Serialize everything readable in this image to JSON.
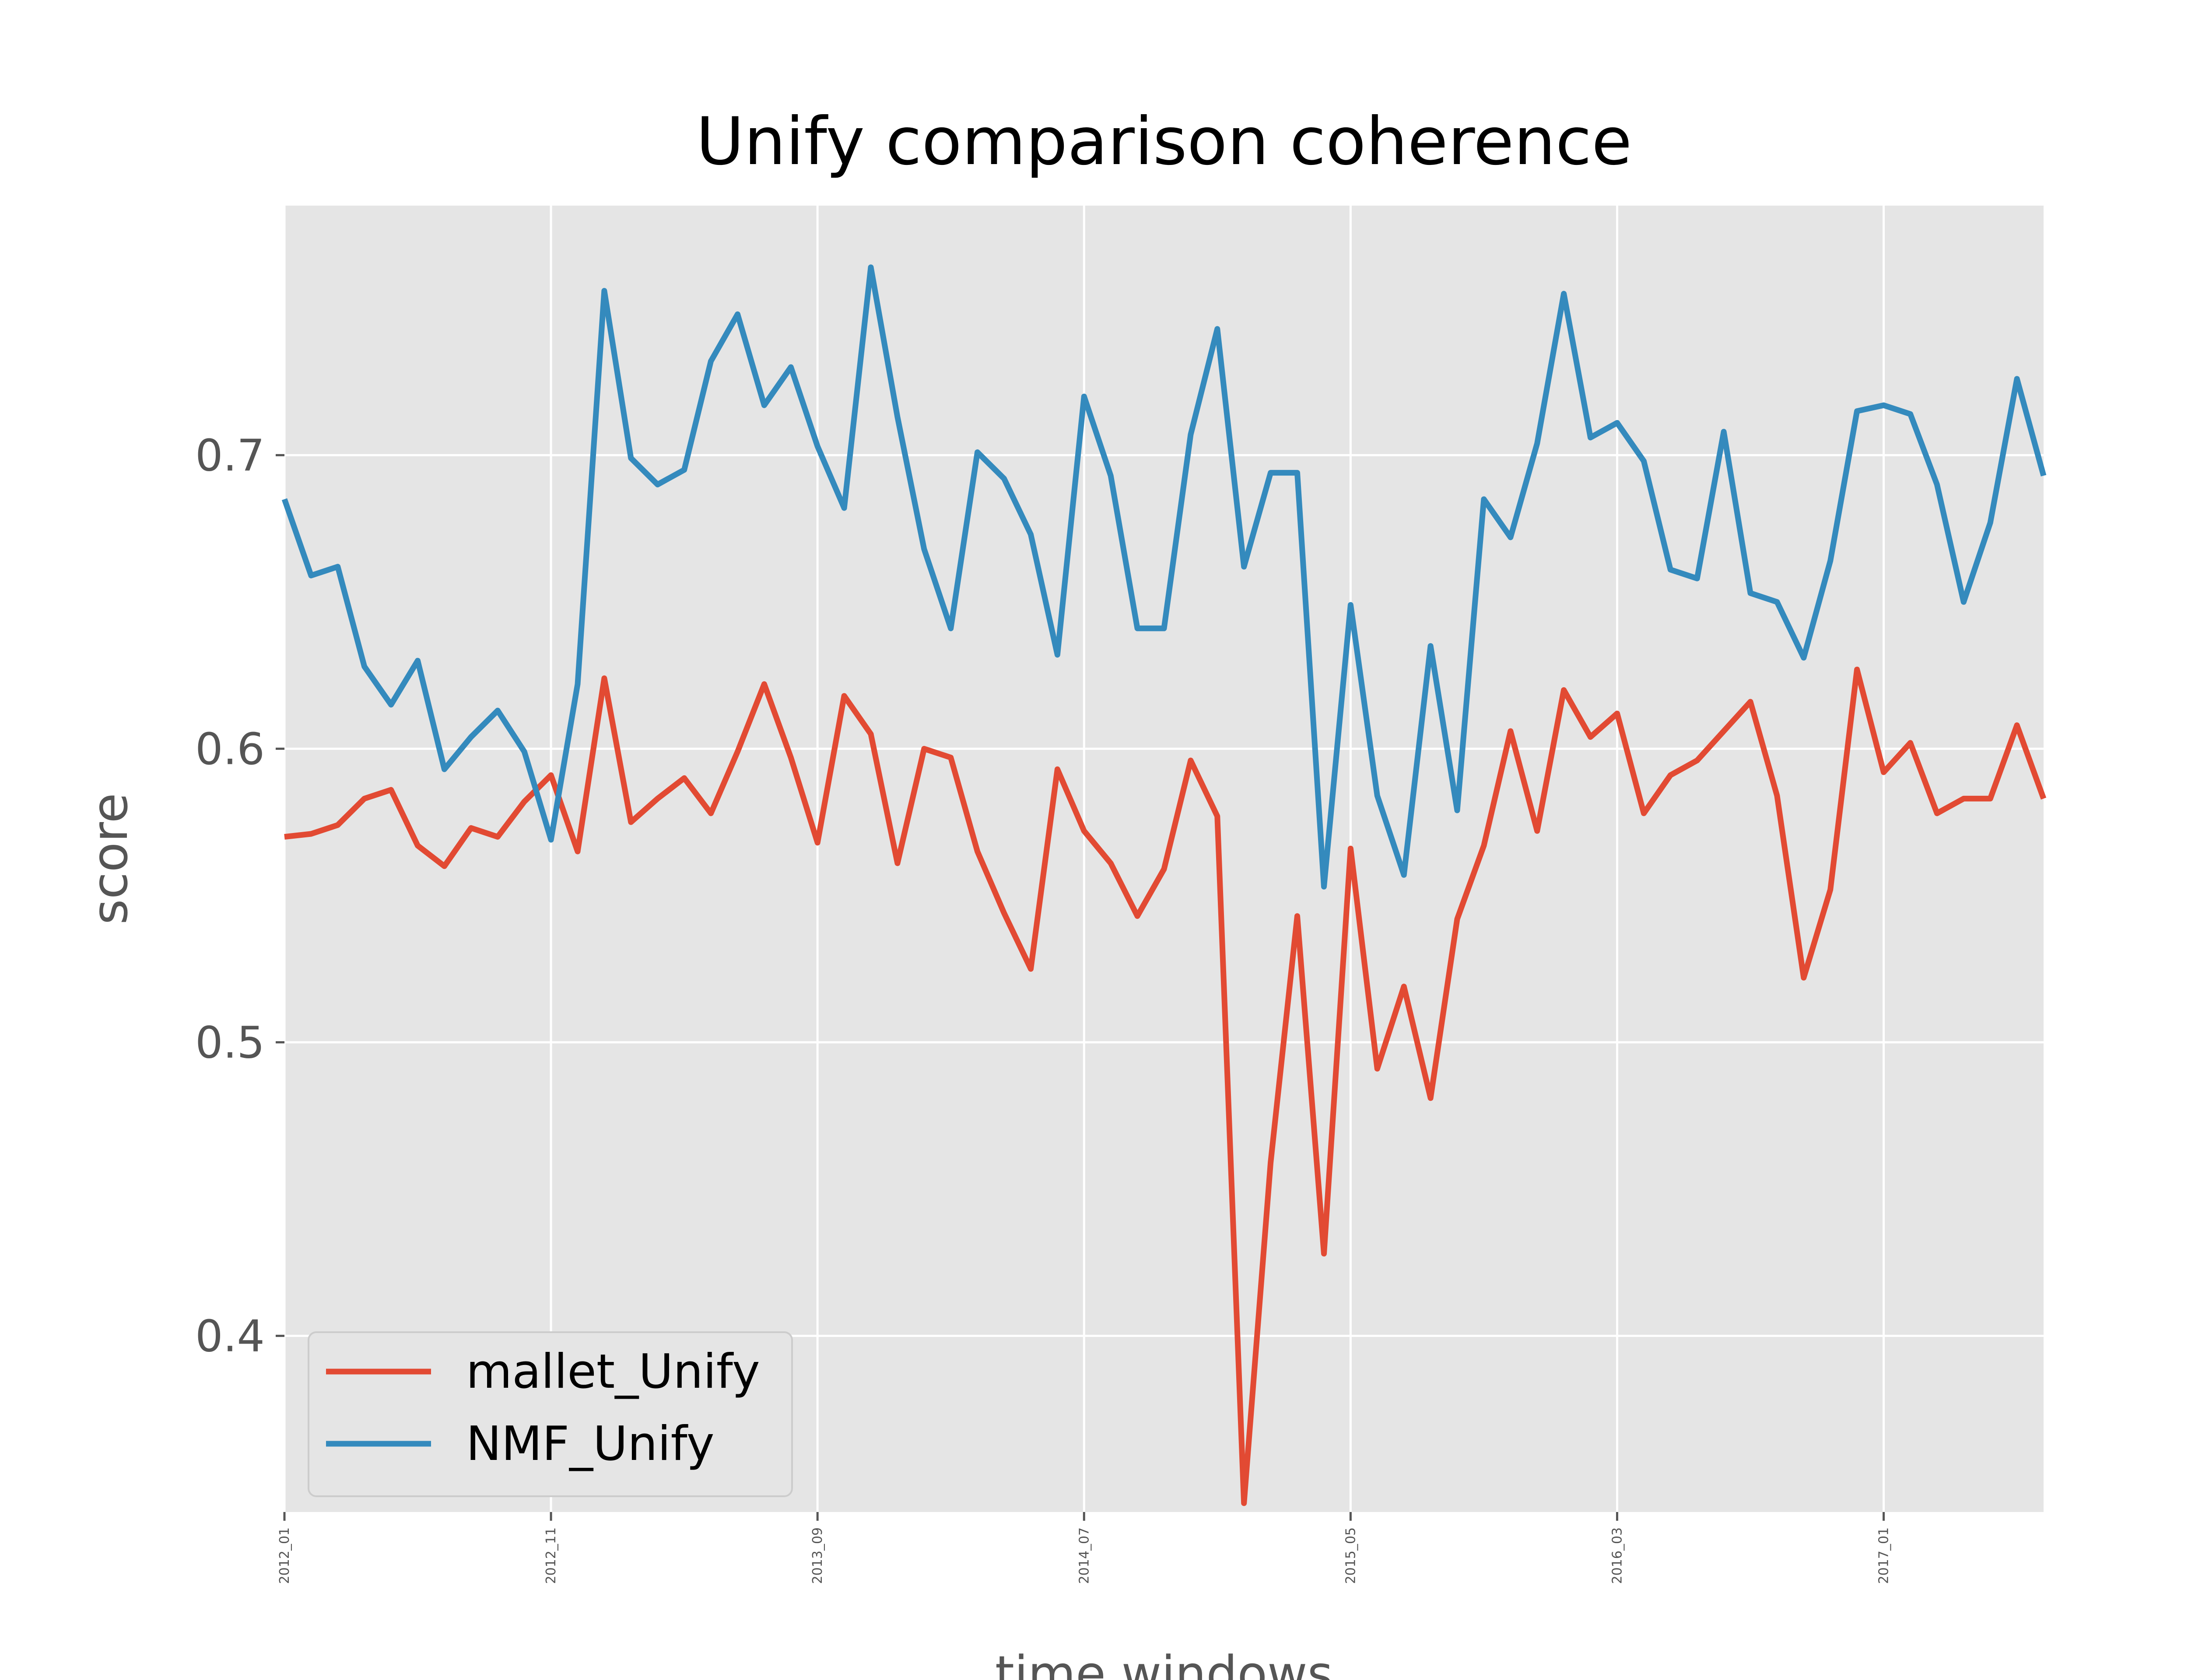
{
  "chart_data": {
    "type": "line",
    "title": "Unify comparison coherence",
    "xlabel": "time windows",
    "ylabel": "score",
    "ylim": [
      0.34,
      0.785
    ],
    "yticks": [
      0.4,
      0.5,
      0.6,
      0.7
    ],
    "ytick_labels": [
      "0.4",
      "0.5",
      "0.6",
      "0.7"
    ],
    "xtick_labels": [
      "2012_01",
      "2012_11",
      "2013_09",
      "2014_07",
      "2015_05",
      "2016_03",
      "2017_01"
    ],
    "xtick_step_months": 10,
    "grid": true,
    "legend_position": "lower-left",
    "x": [
      "2012_01",
      "2012_02",
      "2012_03",
      "2012_04",
      "2012_05",
      "2012_06",
      "2012_07",
      "2012_08",
      "2012_09",
      "2012_10",
      "2012_11",
      "2012_12",
      "2013_01",
      "2013_02",
      "2013_03",
      "2013_04",
      "2013_05",
      "2013_06",
      "2013_07",
      "2013_08",
      "2013_09",
      "2013_10",
      "2013_11",
      "2013_12",
      "2014_01",
      "2014_02",
      "2014_03",
      "2014_04",
      "2014_05",
      "2014_06",
      "2014_07",
      "2014_08",
      "2014_09",
      "2014_10",
      "2014_11",
      "2014_12",
      "2015_01",
      "2015_02",
      "2015_03",
      "2015_04",
      "2015_05",
      "2015_06",
      "2015_07",
      "2015_08",
      "2015_09",
      "2015_10",
      "2015_11",
      "2015_12",
      "2016_01",
      "2016_02",
      "2016_03",
      "2016_04",
      "2016_05",
      "2016_06",
      "2016_07",
      "2016_08",
      "2016_09",
      "2016_10",
      "2016_11",
      "2016_12",
      "2017_01",
      "2017_02",
      "2017_03",
      "2017_04",
      "2017_05",
      "2017_06",
      "2017_07"
    ],
    "series": [
      {
        "name": "mallet_Unify",
        "color": "#e24a33",
        "values": [
          0.57,
          0.571,
          0.574,
          0.583,
          0.586,
          0.567,
          0.56,
          0.573,
          0.57,
          0.582,
          0.591,
          0.565,
          0.624,
          0.575,
          0.583,
          0.59,
          0.578,
          0.599,
          0.622,
          0.597,
          0.568,
          0.618,
          0.605,
          0.561,
          0.6,
          0.597,
          0.565,
          0.544,
          0.525,
          0.593,
          0.572,
          0.561,
          0.543,
          0.559,
          0.596,
          0.577,
          0.343,
          0.459,
          0.543,
          0.428,
          0.566,
          0.491,
          0.519,
          0.481,
          0.542,
          0.567,
          0.606,
          0.572,
          0.62,
          0.604,
          0.612,
          0.578,
          0.591,
          0.596,
          0.606,
          0.616,
          0.584,
          0.522,
          0.552,
          0.627,
          0.592,
          0.602,
          0.578,
          0.583,
          0.583,
          0.608,
          0.583
        ]
      },
      {
        "name": "NMF_Unify",
        "color": "#348abd",
        "values": [
          0.685,
          0.659,
          0.662,
          0.628,
          0.615,
          0.63,
          0.593,
          0.604,
          0.613,
          0.599,
          0.569,
          0.622,
          0.756,
          0.699,
          0.69,
          0.695,
          0.732,
          0.748,
          0.717,
          0.73,
          0.703,
          0.682,
          0.764,
          0.713,
          0.668,
          0.641,
          0.701,
          0.692,
          0.673,
          0.632,
          0.72,
          0.693,
          0.641,
          0.641,
          0.707,
          0.743,
          0.662,
          0.694,
          0.694,
          0.553,
          0.649,
          0.584,
          0.557,
          0.635,
          0.579,
          0.685,
          0.672,
          0.704,
          0.755,
          0.706,
          0.711,
          0.698,
          0.661,
          0.658,
          0.708,
          0.653,
          0.65,
          0.631,
          0.664,
          0.715,
          0.717,
          0.714,
          0.69,
          0.65,
          0.677,
          0.726,
          0.693
        ]
      }
    ]
  }
}
